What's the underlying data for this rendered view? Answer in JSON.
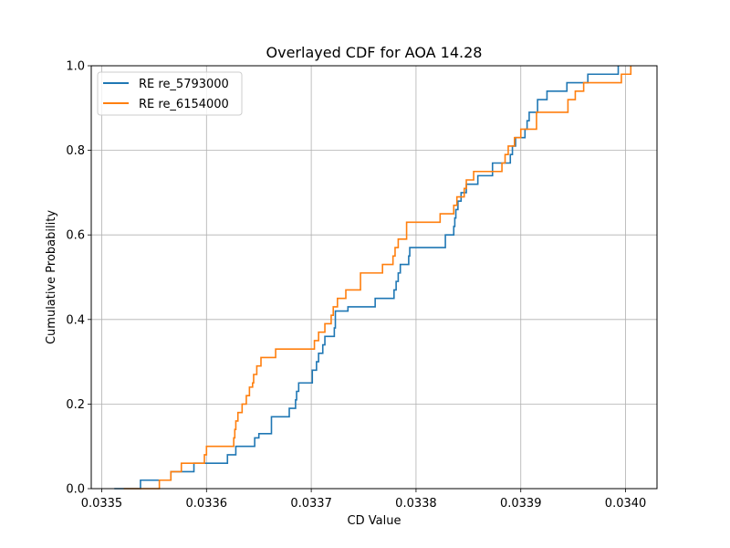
{
  "chart_data": {
    "type": "line",
    "step": true,
    "title": "Overlayed CDF for AOA 14.28",
    "xlabel": "CD Value",
    "ylabel": "Cumulative Probability",
    "xlim": [
      0.03349,
      0.03403
    ],
    "ylim": [
      0.0,
      1.0
    ],
    "xticks": [
      0.0335,
      0.0336,
      0.0337,
      0.0338,
      0.0339,
      0.034
    ],
    "xtick_labels": [
      "0.0335",
      "0.0336",
      "0.0337",
      "0.0338",
      "0.0339",
      "0.0340"
    ],
    "yticks": [
      0.0,
      0.2,
      0.4,
      0.6,
      0.8,
      1.0
    ],
    "ytick_labels": [
      "0.0",
      "0.2",
      "0.4",
      "0.6",
      "0.8",
      "1.0"
    ],
    "grid": true,
    "legend_position": "upper-left",
    "series": [
      {
        "name": "RE re_5793000",
        "color": "#1f77b4",
        "x": [
          0.033512,
          0.033537,
          0.033566,
          0.033576,
          0.033588,
          0.03362,
          0.033628,
          0.033646,
          0.03365,
          0.033662,
          0.033679,
          0.033685,
          0.033686,
          0.033688,
          0.033701,
          0.033705,
          0.033707,
          0.033711,
          0.033713,
          0.033722,
          0.033723,
          0.033735,
          0.033761,
          0.033779,
          0.033781,
          0.033783,
          0.033785,
          0.033793,
          0.033794,
          0.03381,
          0.033828,
          0.033836,
          0.033837,
          0.033838,
          0.03384,
          0.033843,
          0.033848,
          0.033859,
          0.033873,
          0.033883,
          0.03389,
          0.033892,
          0.033895,
          0.033904,
          0.033905,
          0.033906,
          0.033908,
          0.033916,
          0.033925,
          0.033944,
          0.033964,
          0.033993
        ],
        "y": [
          0.0,
          0.02,
          0.04,
          0.04,
          0.06,
          0.08,
          0.1,
          0.12,
          0.13,
          0.17,
          0.19,
          0.21,
          0.23,
          0.25,
          0.28,
          0.3,
          0.32,
          0.34,
          0.36,
          0.38,
          0.42,
          0.43,
          0.45,
          0.47,
          0.49,
          0.51,
          0.53,
          0.55,
          0.57,
          0.57,
          0.6,
          0.62,
          0.64,
          0.66,
          0.68,
          0.7,
          0.72,
          0.74,
          0.77,
          0.77,
          0.79,
          0.81,
          0.83,
          0.85,
          0.85,
          0.87,
          0.89,
          0.92,
          0.94,
          0.96,
          0.98,
          1.0
        ]
      },
      {
        "name": "RE re_6154000",
        "color": "#ff7f0e",
        "x": [
          0.033521,
          0.033555,
          0.033566,
          0.033576,
          0.033598,
          0.0336,
          0.033626,
          0.033627,
          0.033628,
          0.03363,
          0.033634,
          0.033638,
          0.033641,
          0.033644,
          0.033645,
          0.033648,
          0.033652,
          0.033666,
          0.033703,
          0.033707,
          0.033713,
          0.033719,
          0.033721,
          0.033725,
          0.033733,
          0.033747,
          0.033758,
          0.033768,
          0.033778,
          0.03378,
          0.033783,
          0.033791,
          0.03382,
          0.033823,
          0.033836,
          0.033839,
          0.033846,
          0.033848,
          0.033849,
          0.033855,
          0.033862,
          0.033882,
          0.033885,
          0.033888,
          0.033894,
          0.0339,
          0.033915,
          0.033945,
          0.033952,
          0.03396,
          0.033996,
          0.034005
        ],
        "y": [
          0.0,
          0.02,
          0.04,
          0.06,
          0.08,
          0.1,
          0.12,
          0.14,
          0.16,
          0.18,
          0.2,
          0.22,
          0.24,
          0.25,
          0.27,
          0.29,
          0.31,
          0.33,
          0.35,
          0.37,
          0.39,
          0.41,
          0.43,
          0.45,
          0.47,
          0.51,
          0.51,
          0.53,
          0.55,
          0.57,
          0.59,
          0.63,
          0.63,
          0.65,
          0.67,
          0.69,
          0.71,
          0.73,
          0.73,
          0.75,
          0.75,
          0.77,
          0.79,
          0.81,
          0.83,
          0.85,
          0.89,
          0.92,
          0.94,
          0.96,
          0.98,
          1.0
        ]
      }
    ]
  }
}
